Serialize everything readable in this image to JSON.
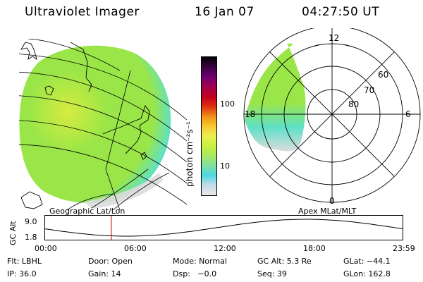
{
  "header": {
    "instrument": "Ultraviolet Imager",
    "date": "16 Jan 07",
    "time": "04:27:50 UT"
  },
  "geo_panel": {
    "label": "Geographic Lat/Lon"
  },
  "polar_panel": {
    "label": "Apex MLat/MLT",
    "mlt_labels": [
      "12",
      "6",
      "0",
      "18"
    ],
    "mlat_labels": [
      "60",
      "70",
      "80"
    ]
  },
  "colorbar": {
    "unit_label": "photon cm⁻²s⁻¹",
    "tick_labels": [
      "100",
      "10"
    ],
    "colors": [
      "#e8e8e8",
      "#c8dce8",
      "#4fd8e0",
      "#7fe0a0",
      "#a8e860",
      "#c8f040",
      "#e8f050",
      "#f8c830",
      "#f09018",
      "#e03010",
      "#c00020",
      "#a00050",
      "#700070",
      "#3a0040",
      "#000000"
    ]
  },
  "altitude_plot": {
    "ylabel": "GC Alt",
    "yticks": [
      "9.0",
      "1.8"
    ],
    "xticks": [
      "00:00",
      "06:00",
      "12:00",
      "18:00",
      "23:59"
    ],
    "current_marker_hours": 4.46,
    "line_color": "#000000",
    "marker_color": "#c00000"
  },
  "status": {
    "row1": [
      "Flt: LBHL",
      "Door: Open",
      "Mode: Normal",
      "GC Alt: 5.3 Re",
      "GLat: −44.1"
    ],
    "row2": [
      "IP: 36.0",
      "Gain: 14",
      "Dsp:   −0.0",
      "Seq: 39",
      "GLon: 162.8"
    ]
  },
  "image_colors": {
    "aurora_green": "#9ae648",
    "aurora_yellow": "#d6ec40",
    "aurora_cyan": "#5fe0c8",
    "aurora_grey": "#dcdcdc",
    "outline": "#000000"
  }
}
